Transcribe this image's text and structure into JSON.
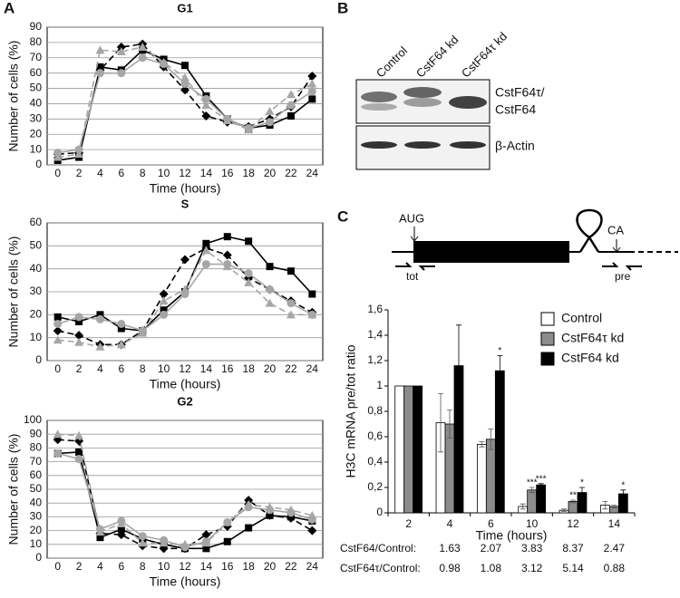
{
  "panels": [
    "A",
    "B",
    "C"
  ],
  "blot": {
    "lanes": [
      "Control",
      "CstF64 kd",
      "CstF64τ kd"
    ],
    "band_label_1": "CstF64τ/",
    "band_label_2": "CstF64",
    "actin_label": "β-Actin"
  },
  "diagram": {
    "start": "AUG",
    "pa_site": "CA",
    "tot_primer": "tot",
    "pre_primer": "pre"
  },
  "ratio_table": {
    "rows": [
      {
        "label": "CstF64/Control:",
        "values": [
          1.63,
          2.07,
          3.83,
          8.37,
          2.47
        ]
      },
      {
        "label": "CstF64τ/Control:",
        "values": [
          0.98,
          1.08,
          3.12,
          5.14,
          0.88
        ]
      }
    ]
  },
  "chart_data": [
    {
      "type": "line",
      "title": "G1",
      "x_label": "Time (hours)",
      "y_label": "Number of cells (%)",
      "categories": [
        "0",
        "2",
        "4",
        "6",
        "8",
        "10",
        "12",
        "14",
        "16",
        "18",
        "20",
        "22",
        "24"
      ],
      "ylim": [
        0,
        90
      ],
      "yticks": [
        0,
        10,
        20,
        30,
        40,
        50,
        60,
        70,
        80,
        90
      ],
      "grid": true,
      "series": [
        {
          "color": "#000000",
          "marker": "square",
          "dashed": false,
          "values": [
            3,
            5,
            64,
            62,
            75,
            69,
            65,
            45,
            30,
            24,
            26,
            32,
            43
          ]
        },
        {
          "color": "#000000",
          "marker": "diamond",
          "dashed": true,
          "values": [
            7,
            8,
            62,
            77,
            79,
            64,
            49,
            32,
            28,
            25,
            30,
            38,
            58
          ]
        },
        {
          "color": "#a6a6a6",
          "marker": "circle",
          "dashed": false,
          "values": [
            8,
            10,
            60,
            60,
            70,
            66,
            53,
            43,
            30,
            24,
            28,
            39,
            48
          ]
        },
        {
          "color": "#a6a6a6",
          "marker": "triangle",
          "dashed": true,
          "values": [
            5,
            7,
            75,
            74,
            77,
            67,
            57,
            39,
            29,
            23,
            35,
            46,
            53
          ]
        }
      ]
    },
    {
      "type": "line",
      "title": "S",
      "x_label": "Time (hours)",
      "y_label": "Number of cells (%)",
      "categories": [
        "0",
        "2",
        "4",
        "6",
        "8",
        "10",
        "12",
        "14",
        "16",
        "18",
        "20",
        "22",
        "24"
      ],
      "ylim": [
        0,
        60
      ],
      "yticks": [
        0,
        10,
        20,
        30,
        40,
        50,
        60
      ],
      "grid": true,
      "series": [
        {
          "color": "#000000",
          "marker": "square",
          "dashed": false,
          "values": [
            19,
            17,
            20,
            14,
            13,
            22,
            30,
            51,
            54,
            52,
            41,
            39,
            29
          ]
        },
        {
          "color": "#000000",
          "marker": "diamond",
          "dashed": true,
          "values": [
            13,
            11,
            7,
            7,
            13,
            29,
            44,
            49,
            46,
            36,
            31,
            26,
            21
          ]
        },
        {
          "color": "#a6a6a6",
          "marker": "circle",
          "dashed": false,
          "values": [
            16,
            19,
            18,
            16,
            13,
            20,
            29,
            42,
            42,
            38,
            31,
            25,
            20
          ]
        },
        {
          "color": "#a6a6a6",
          "marker": "triangle",
          "dashed": true,
          "values": [
            9,
            8,
            6,
            7,
            12,
            26,
            31,
            48,
            41,
            34,
            25,
            20,
            20
          ]
        }
      ]
    },
    {
      "type": "line",
      "title": "G2",
      "x_label": "Time (hours)",
      "y_label": "Number of cells (%)",
      "categories": [
        "0",
        "2",
        "4",
        "6",
        "8",
        "10",
        "12",
        "14",
        "16",
        "18",
        "20",
        "22",
        "24"
      ],
      "ylim": [
        0,
        100
      ],
      "yticks": [
        0,
        10,
        20,
        30,
        40,
        50,
        60,
        70,
        80,
        90,
        100
      ],
      "grid": true,
      "series": [
        {
          "color": "#000000",
          "marker": "square",
          "dashed": false,
          "values": [
            76,
            77,
            15,
            21,
            14,
            10,
            7,
            7,
            12,
            22,
            31,
            30,
            27
          ]
        },
        {
          "color": "#000000",
          "marker": "diamond",
          "dashed": true,
          "values": [
            86,
            85,
            18,
            17,
            9,
            7,
            7,
            17,
            23,
            42,
            31,
            29,
            20
          ]
        },
        {
          "color": "#a6a6a6",
          "marker": "circle",
          "dashed": false,
          "values": [
            76,
            72,
            21,
            27,
            16,
            13,
            8,
            12,
            26,
            37,
            35,
            33,
            28
          ]
        },
        {
          "color": "#a6a6a6",
          "marker": "triangle",
          "dashed": true,
          "values": [
            90,
            89,
            19,
            25,
            11,
            11,
            10,
            11,
            26,
            39,
            37,
            35,
            31
          ]
        }
      ]
    },
    {
      "type": "bar",
      "x_label": "Time (hours)",
      "y_label": "H3C mRNA pre/tot ratio",
      "categories": [
        "2",
        "4",
        "6",
        "10",
        "12",
        "14"
      ],
      "ylim": [
        0,
        1.6
      ],
      "yticks": [
        0,
        {
          "value": 0.2,
          "label": "0,2"
        },
        {
          "value": 0.4,
          "label": "0,4"
        },
        {
          "value": 0.6,
          "label": "0,6"
        },
        {
          "value": 0.8,
          "label": "0,8"
        },
        1,
        {
          "value": 1.2,
          "label": "1,2"
        },
        {
          "value": 1.4,
          "label": "1,4"
        },
        {
          "value": 1.6,
          "label": "1,6"
        }
      ],
      "grid": false,
      "legend": "top-right",
      "series": [
        {
          "name": "Control",
          "color": "#ffffff",
          "values": [
            1.0,
            0.71,
            0.54,
            0.05,
            0.02,
            0.06
          ],
          "errors": [
            null,
            0.23,
            0.02,
            0.02,
            0.01,
            0.03
          ],
          "stars": [
            null,
            null,
            null,
            null,
            null,
            null
          ]
        },
        {
          "name": "CstF64τ kd",
          "color": "#8c8c8c",
          "values": [
            1.0,
            0.7,
            0.58,
            0.18,
            0.09,
            0.05
          ],
          "errors": [
            null,
            0.11,
            0.08,
            0.02,
            0.01,
            0.01
          ],
          "stars": [
            null,
            null,
            null,
            "***",
            "**",
            null
          ]
        },
        {
          "name": "CstF64 kd",
          "color": "#000000",
          "values": [
            1.0,
            1.16,
            1.12,
            0.22,
            0.16,
            0.15
          ],
          "errors": [
            null,
            0.32,
            0.12,
            0.01,
            0.04,
            0.03
          ],
          "stars": [
            null,
            null,
            "*",
            "***",
            "*",
            "*"
          ]
        }
      ]
    }
  ]
}
